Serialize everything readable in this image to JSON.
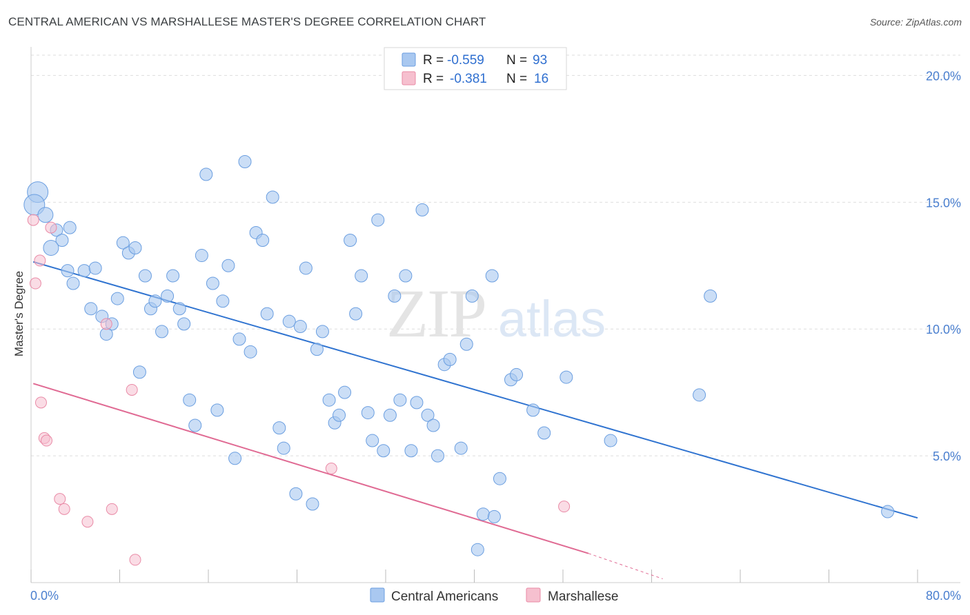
{
  "title": "CENTRAL AMERICAN VS MARSHALLESE MASTER'S DEGREE CORRELATION CHART",
  "source": "Source: ZipAtlas.com",
  "watermark": {
    "zip": "ZIP",
    "atlas": "atlas"
  },
  "colors": {
    "blue_fill": "#a9c8f0",
    "blue_stroke": "#6a9ee0",
    "blue_line": "#2f73d0",
    "pink_fill": "#f6c0cf",
    "pink_stroke": "#e98aa6",
    "pink_line": "#e06a93",
    "grid": "#dddddd",
    "tick_text": "#4a7fcf"
  },
  "legend": {
    "rows": [
      {
        "r_label": "R =",
        "r_value": "-0.559",
        "n_label": "N =",
        "n_value": "93"
      },
      {
        "r_label": "R =",
        "r_value": "-0.381",
        "n_label": "N =",
        "n_value": "16"
      }
    ]
  },
  "chart_data": {
    "type": "scatter",
    "title": "CENTRAL AMERICAN VS MARSHALLESE MASTER'S DEGREE CORRELATION CHART",
    "xlabel": "",
    "ylabel": "Master's Degree",
    "xlim": [
      0,
      80
    ],
    "ylim": [
      0,
      20.8
    ],
    "x_tick_labels": [
      "0.0%",
      "80.0%"
    ],
    "y_ticks": [
      5,
      10,
      15,
      20
    ],
    "y_tick_labels": [
      "5.0%",
      "10.0%",
      "15.0%",
      "20.0%"
    ],
    "grid": true,
    "legend_position": "top-center",
    "series": [
      {
        "name": "Central Americans",
        "r": -0.559,
        "n": 93,
        "trend": {
          "x": [
            0.2,
            80
          ],
          "y": [
            12.65,
            2.55
          ]
        },
        "points": [
          {
            "x": 0.6,
            "y": 15.4,
            "s": 3
          },
          {
            "x": 0.3,
            "y": 14.9,
            "s": 3
          },
          {
            "x": 1.3,
            "y": 14.5,
            "s": 2
          },
          {
            "x": 2.3,
            "y": 13.9,
            "s": 1
          },
          {
            "x": 2.8,
            "y": 13.5,
            "s": 1
          },
          {
            "x": 3.5,
            "y": 14.0,
            "s": 1
          },
          {
            "x": 1.8,
            "y": 13.2,
            "s": 2
          },
          {
            "x": 3.3,
            "y": 12.3,
            "s": 1
          },
          {
            "x": 3.8,
            "y": 11.8,
            "s": 1
          },
          {
            "x": 4.8,
            "y": 12.3,
            "s": 1
          },
          {
            "x": 5.8,
            "y": 12.4,
            "s": 1
          },
          {
            "x": 5.4,
            "y": 10.8,
            "s": 1
          },
          {
            "x": 6.4,
            "y": 10.5,
            "s": 1
          },
          {
            "x": 7.3,
            "y": 10.2,
            "s": 1
          },
          {
            "x": 6.8,
            "y": 9.8,
            "s": 1
          },
          {
            "x": 7.8,
            "y": 11.2,
            "s": 1
          },
          {
            "x": 8.3,
            "y": 13.4,
            "s": 1
          },
          {
            "x": 8.8,
            "y": 13.0,
            "s": 1
          },
          {
            "x": 9.4,
            "y": 13.2,
            "s": 1
          },
          {
            "x": 10.3,
            "y": 12.1,
            "s": 1
          },
          {
            "x": 10.8,
            "y": 10.8,
            "s": 1
          },
          {
            "x": 11.2,
            "y": 11.1,
            "s": 1
          },
          {
            "x": 9.8,
            "y": 8.3,
            "s": 1
          },
          {
            "x": 11.8,
            "y": 9.9,
            "s": 1
          },
          {
            "x": 12.3,
            "y": 11.3,
            "s": 1
          },
          {
            "x": 12.8,
            "y": 12.1,
            "s": 1
          },
          {
            "x": 13.4,
            "y": 10.8,
            "s": 1
          },
          {
            "x": 13.8,
            "y": 10.2,
            "s": 1
          },
          {
            "x": 14.3,
            "y": 7.2,
            "s": 1
          },
          {
            "x": 14.8,
            "y": 6.2,
            "s": 1
          },
          {
            "x": 15.4,
            "y": 12.9,
            "s": 1
          },
          {
            "x": 15.8,
            "y": 16.1,
            "s": 1
          },
          {
            "x": 16.4,
            "y": 11.8,
            "s": 1
          },
          {
            "x": 16.8,
            "y": 6.8,
            "s": 1
          },
          {
            "x": 17.3,
            "y": 11.1,
            "s": 1
          },
          {
            "x": 17.8,
            "y": 12.5,
            "s": 1
          },
          {
            "x": 18.4,
            "y": 4.9,
            "s": 1
          },
          {
            "x": 18.8,
            "y": 9.6,
            "s": 1
          },
          {
            "x": 19.3,
            "y": 16.6,
            "s": 1
          },
          {
            "x": 19.8,
            "y": 9.1,
            "s": 1
          },
          {
            "x": 20.3,
            "y": 13.8,
            "s": 1
          },
          {
            "x": 20.9,
            "y": 13.5,
            "s": 1
          },
          {
            "x": 21.3,
            "y": 10.6,
            "s": 1
          },
          {
            "x": 21.8,
            "y": 15.2,
            "s": 1
          },
          {
            "x": 22.4,
            "y": 6.1,
            "s": 1
          },
          {
            "x": 22.8,
            "y": 5.3,
            "s": 1
          },
          {
            "x": 23.3,
            "y": 10.3,
            "s": 1
          },
          {
            "x": 23.9,
            "y": 3.5,
            "s": 1
          },
          {
            "x": 24.3,
            "y": 10.1,
            "s": 1
          },
          {
            "x": 24.8,
            "y": 12.4,
            "s": 1
          },
          {
            "x": 25.4,
            "y": 3.1,
            "s": 1
          },
          {
            "x": 25.8,
            "y": 9.2,
            "s": 1
          },
          {
            "x": 26.3,
            "y": 9.9,
            "s": 1
          },
          {
            "x": 26.9,
            "y": 7.2,
            "s": 1
          },
          {
            "x": 27.4,
            "y": 6.3,
            "s": 1
          },
          {
            "x": 27.8,
            "y": 6.6,
            "s": 1
          },
          {
            "x": 28.3,
            "y": 7.5,
            "s": 1
          },
          {
            "x": 28.8,
            "y": 13.5,
            "s": 1
          },
          {
            "x": 29.3,
            "y": 10.6,
            "s": 1
          },
          {
            "x": 29.8,
            "y": 12.1,
            "s": 1
          },
          {
            "x": 30.4,
            "y": 6.7,
            "s": 1
          },
          {
            "x": 30.8,
            "y": 5.6,
            "s": 1
          },
          {
            "x": 31.3,
            "y": 14.3,
            "s": 1
          },
          {
            "x": 31.8,
            "y": 5.2,
            "s": 1
          },
          {
            "x": 32.4,
            "y": 6.6,
            "s": 1
          },
          {
            "x": 32.8,
            "y": 11.3,
            "s": 1
          },
          {
            "x": 33.3,
            "y": 7.2,
            "s": 1
          },
          {
            "x": 33.8,
            "y": 12.1,
            "s": 1
          },
          {
            "x": 34.3,
            "y": 5.2,
            "s": 1
          },
          {
            "x": 34.8,
            "y": 7.1,
            "s": 1
          },
          {
            "x": 35.3,
            "y": 14.7,
            "s": 1
          },
          {
            "x": 35.8,
            "y": 6.6,
            "s": 1
          },
          {
            "x": 36.3,
            "y": 6.2,
            "s": 1
          },
          {
            "x": 36.7,
            "y": 5.0,
            "s": 1
          },
          {
            "x": 37.3,
            "y": 8.6,
            "s": 1
          },
          {
            "x": 37.8,
            "y": 8.8,
            "s": 1
          },
          {
            "x": 38.8,
            "y": 5.3,
            "s": 1
          },
          {
            "x": 39.3,
            "y": 9.4,
            "s": 1
          },
          {
            "x": 39.8,
            "y": 11.3,
            "s": 1
          },
          {
            "x": 40.3,
            "y": 1.3,
            "s": 1
          },
          {
            "x": 40.8,
            "y": 2.7,
            "s": 1
          },
          {
            "x": 41.8,
            "y": 2.6,
            "s": 1
          },
          {
            "x": 41.6,
            "y": 12.1,
            "s": 1
          },
          {
            "x": 42.3,
            "y": 4.1,
            "s": 1
          },
          {
            "x": 43.3,
            "y": 8.0,
            "s": 1
          },
          {
            "x": 43.8,
            "y": 8.2,
            "s": 1
          },
          {
            "x": 45.3,
            "y": 6.8,
            "s": 1
          },
          {
            "x": 46.3,
            "y": 5.9,
            "s": 1
          },
          {
            "x": 48.3,
            "y": 8.1,
            "s": 1
          },
          {
            "x": 52.3,
            "y": 5.6,
            "s": 1
          },
          {
            "x": 60.3,
            "y": 7.4,
            "s": 1
          },
          {
            "x": 61.3,
            "y": 11.3,
            "s": 1
          },
          {
            "x": 77.3,
            "y": 2.8,
            "s": 1
          }
        ]
      },
      {
        "name": "Marshallese",
        "r": -0.381,
        "n": 16,
        "trend": {
          "x": [
            0.2,
            50.3
          ],
          "y": [
            7.85,
            1.15
          ]
        },
        "trend_dashed": {
          "x": [
            50.3,
            57.0
          ],
          "y": [
            1.15,
            0.15
          ]
        },
        "points": [
          {
            "x": 0.2,
            "y": 14.3
          },
          {
            "x": 0.4,
            "y": 11.8
          },
          {
            "x": 0.8,
            "y": 12.7
          },
          {
            "x": 1.8,
            "y": 14.0
          },
          {
            "x": 0.9,
            "y": 7.1
          },
          {
            "x": 1.2,
            "y": 5.7
          },
          {
            "x": 1.4,
            "y": 5.6
          },
          {
            "x": 2.6,
            "y": 3.3
          },
          {
            "x": 3.0,
            "y": 2.9
          },
          {
            "x": 5.1,
            "y": 2.4
          },
          {
            "x": 6.8,
            "y": 10.2
          },
          {
            "x": 7.3,
            "y": 2.9
          },
          {
            "x": 9.1,
            "y": 7.6
          },
          {
            "x": 9.4,
            "y": 0.9
          },
          {
            "x": 27.1,
            "y": 4.5
          },
          {
            "x": 48.1,
            "y": 3.0
          }
        ]
      }
    ]
  }
}
